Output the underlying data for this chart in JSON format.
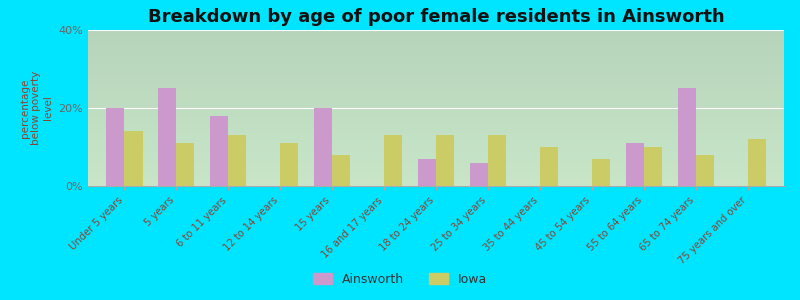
{
  "title": "Breakdown by age of poor female residents in Ainsworth",
  "ylabel": "percentage\nbelow poverty\nlevel",
  "categories": [
    "Under 5 years",
    "5 years",
    "6 to 11 years",
    "12 to 14 years",
    "15 years",
    "16 and 17 years",
    "18 to 24 years",
    "25 to 34 years",
    "35 to 44 years",
    "45 to 54 years",
    "55 to 64 years",
    "65 to 74 years",
    "75 years and over"
  ],
  "ainsworth": [
    20,
    25,
    18,
    0,
    20,
    0,
    7,
    6,
    0,
    0,
    11,
    25,
    0
  ],
  "iowa": [
    14,
    11,
    13,
    11,
    8,
    13,
    13,
    13,
    10,
    7,
    10,
    8,
    12
  ],
  "ainsworth_color": "#cc99cc",
  "iowa_color": "#cccc66",
  "ylim": [
    0,
    40
  ],
  "yticks": [
    0,
    20,
    40
  ],
  "ytick_labels": [
    "0%",
    "20%",
    "40%"
  ],
  "bar_width": 0.35,
  "title_fontsize": 13,
  "fig_bg_color": "#00e5ff",
  "plot_bg_top": "#d8e8c0",
  "plot_bg_bottom": "#f0f5e8"
}
